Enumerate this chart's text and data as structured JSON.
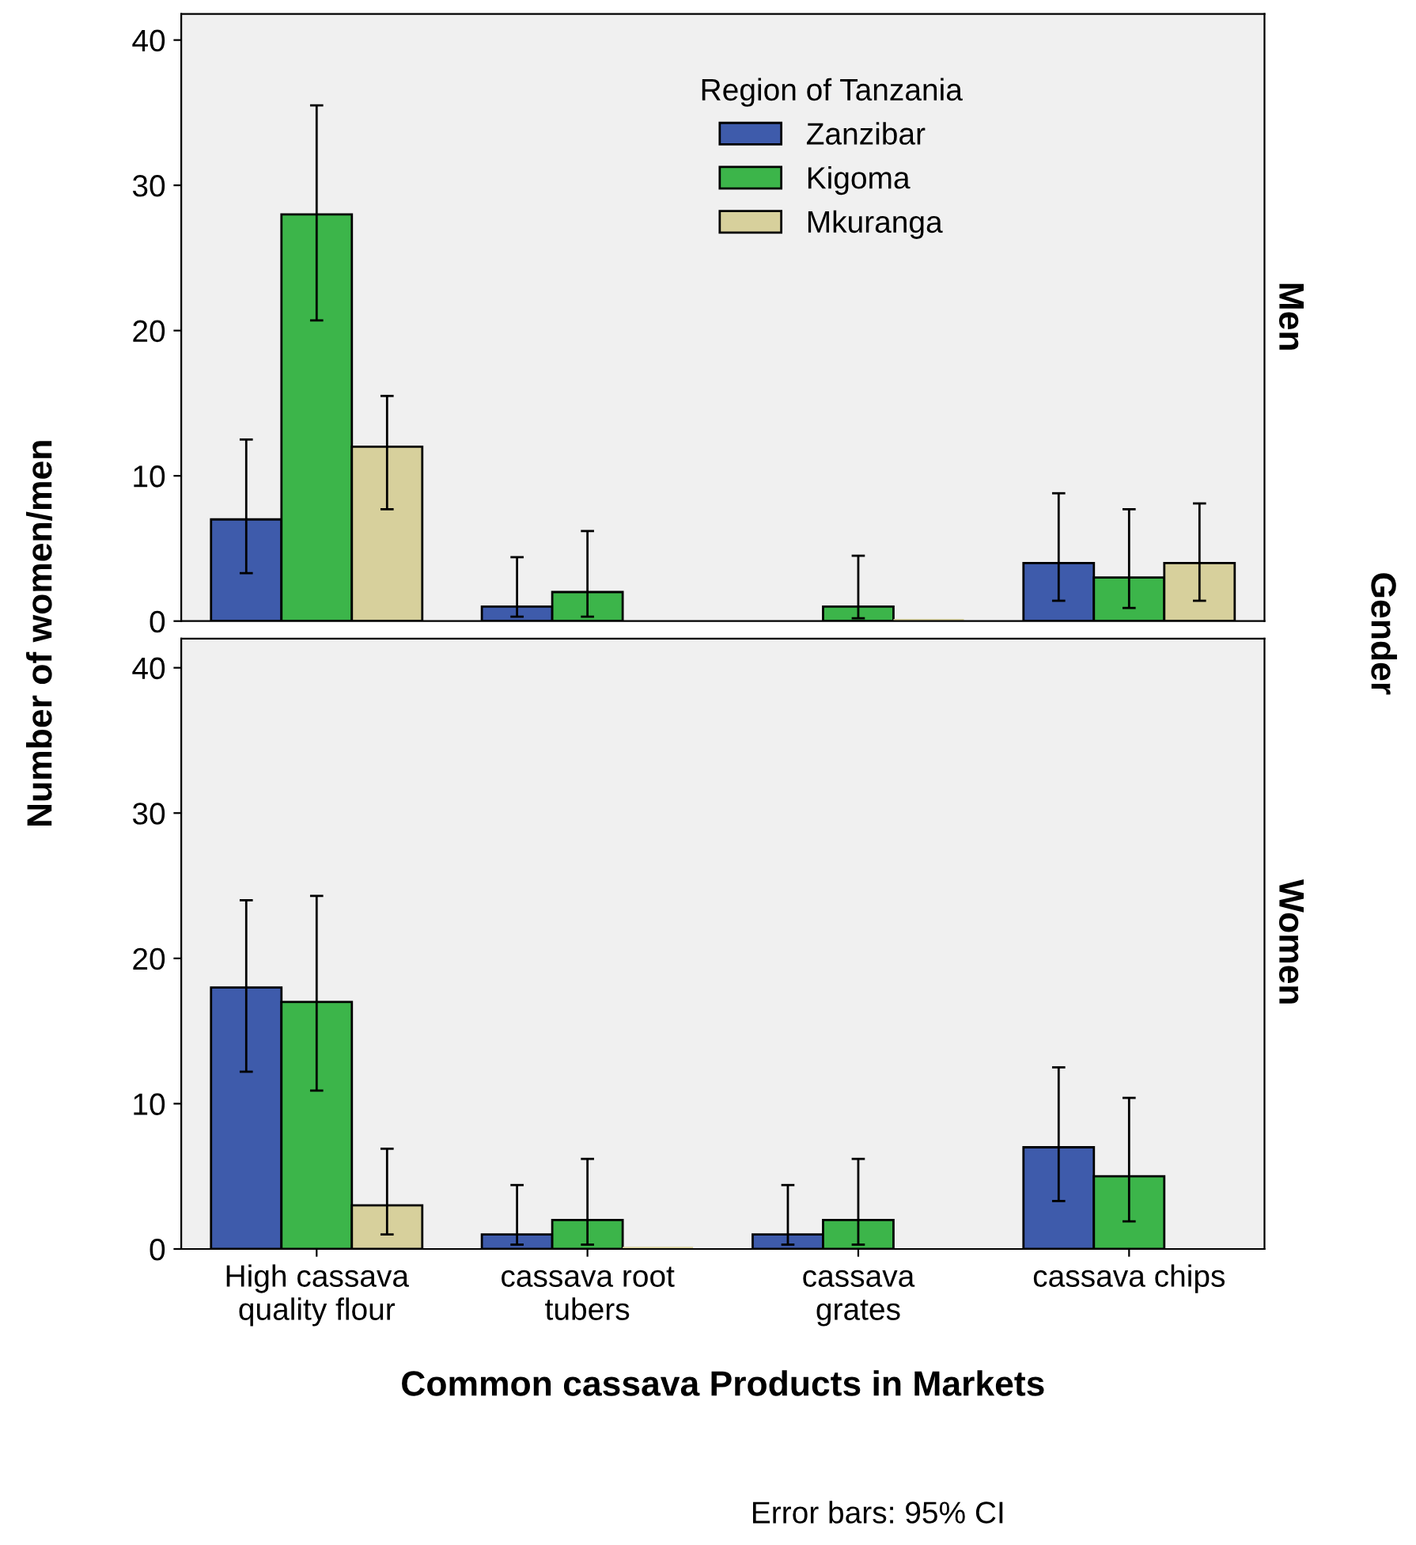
{
  "chart_data": [
    {
      "type": "bar",
      "categories": [
        null,
        null,
        null,
        null
      ],
      "ylabel": "Number of women/men",
      "legend_title": "Region of Tanzania",
      "legend": "top",
      "grid": false,
      "tick_labels": "y",
      "ylim": [
        0,
        41.8
      ],
      "yticks": [
        0,
        10,
        20,
        30,
        40
      ],
      "annotations": [
        "Men",
        "Gender"
      ],
      "series": [
        {
          "name": "Zanzibar",
          "color": "#3e5bab",
          "values": [
            7,
            1,
            null,
            4
          ],
          "errors": [
            [
              3.3,
              12.5
            ],
            [
              0.3,
              4.4
            ],
            null,
            [
              1.4,
              8.8
            ]
          ]
        },
        {
          "name": "Kigoma",
          "color": "#3cb54a",
          "values": [
            28,
            2,
            1,
            3
          ],
          "errors": [
            [
              20.7,
              35.5
            ],
            [
              0.3,
              6.2
            ],
            [
              0.2,
              4.5
            ],
            [
              0.9,
              7.7
            ]
          ]
        },
        {
          "name": "Mkuranga",
          "color": "#d7d09c",
          "values": [
            12,
            null,
            0,
            4
          ],
          "errors": [
            [
              7.7,
              15.5
            ],
            null,
            null,
            [
              1.4,
              8.1
            ]
          ]
        }
      ]
    },
    {
      "type": "bar",
      "categories": [
        "High cassava\nquality flour",
        "cassava root\ntubers",
        "cassava\ngrates",
        "cassava chips"
      ],
      "xlabel": "Common cassava Products in Markets",
      "grid": false,
      "ylim": [
        0,
        42
      ],
      "yticks": [
        0,
        10,
        20,
        30,
        40
      ],
      "annotations": [
        "Women",
        "Error bars: 95% CI"
      ],
      "series": [
        {
          "color": "#3e5bab",
          "values": [
            18,
            1,
            1,
            7
          ],
          "errors": [
            [
              12.2,
              24
            ],
            [
              0.3,
              4.4
            ],
            [
              0.3,
              4.4
            ],
            [
              3.3,
              12.5
            ]
          ]
        },
        {
          "color": "#3cb54a",
          "values": [
            17,
            2,
            2,
            5
          ],
          "errors": [
            [
              10.9,
              24.3
            ],
            [
              0.3,
              6.2
            ],
            [
              0.3,
              6.2
            ],
            [
              1.9,
              10.4
            ]
          ]
        },
        {
          "color": "#d7d09c",
          "values": [
            3,
            0,
            null,
            null
          ],
          "errors": [
            [
              1,
              6.9
            ],
            null,
            null,
            null
          ]
        }
      ]
    }
  ]
}
